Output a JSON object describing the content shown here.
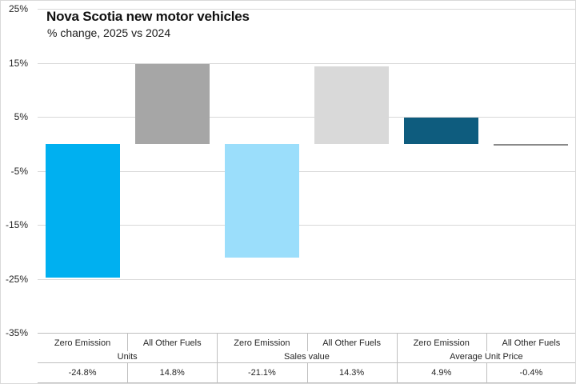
{
  "chart_data": {
    "type": "bar",
    "title": "Nova Scotia new motor vehicles",
    "subtitle": "% change, 2025 vs 2024",
    "unit": "%",
    "ylim": [
      -35,
      25
    ],
    "grid": true,
    "legend": "none",
    "yticks": [
      {
        "value": 25,
        "label": "25%"
      },
      {
        "value": 15,
        "label": "15%"
      },
      {
        "value": 5,
        "label": "5%"
      },
      {
        "value": -5,
        "label": "-5%"
      },
      {
        "value": -15,
        "label": "-15%"
      },
      {
        "value": -25,
        "label": "-25%"
      },
      {
        "value": -35,
        "label": "-35%"
      }
    ],
    "groups": [
      "Units",
      "Sales value",
      "Average Unit Price"
    ],
    "categories": [
      {
        "group": "Units",
        "fuel": "Zero Emission",
        "value": -24.8,
        "label": "-24.8%",
        "color": "#00B0F0"
      },
      {
        "group": "Units",
        "fuel": "All Other Fuels",
        "value": 14.8,
        "label": "14.8%",
        "color": "#A6A6A6"
      },
      {
        "group": "Sales value",
        "fuel": "Zero Emission",
        "value": -21.1,
        "label": "-21.1%",
        "color": "#9BDEFB"
      },
      {
        "group": "Sales value",
        "fuel": "All Other Fuels",
        "value": 14.3,
        "label": "14.3%",
        "color": "#D9D9D9"
      },
      {
        "group": "Average Unit Price",
        "fuel": "Zero Emission",
        "value": 4.9,
        "label": "4.9%",
        "color": "#0E5C7E"
      },
      {
        "group": "Average Unit Price",
        "fuel": "All Other Fuels",
        "value": -0.4,
        "label": "-0.4%",
        "color": "#8A8A8A"
      }
    ]
  },
  "colors": {
    "background": "#FFFFFF",
    "gridline": "#D9D9D9",
    "axis_line": "#BFBFBF",
    "text": "#262626",
    "title_text": "#111111",
    "chart_border": "#D9D9D9"
  }
}
